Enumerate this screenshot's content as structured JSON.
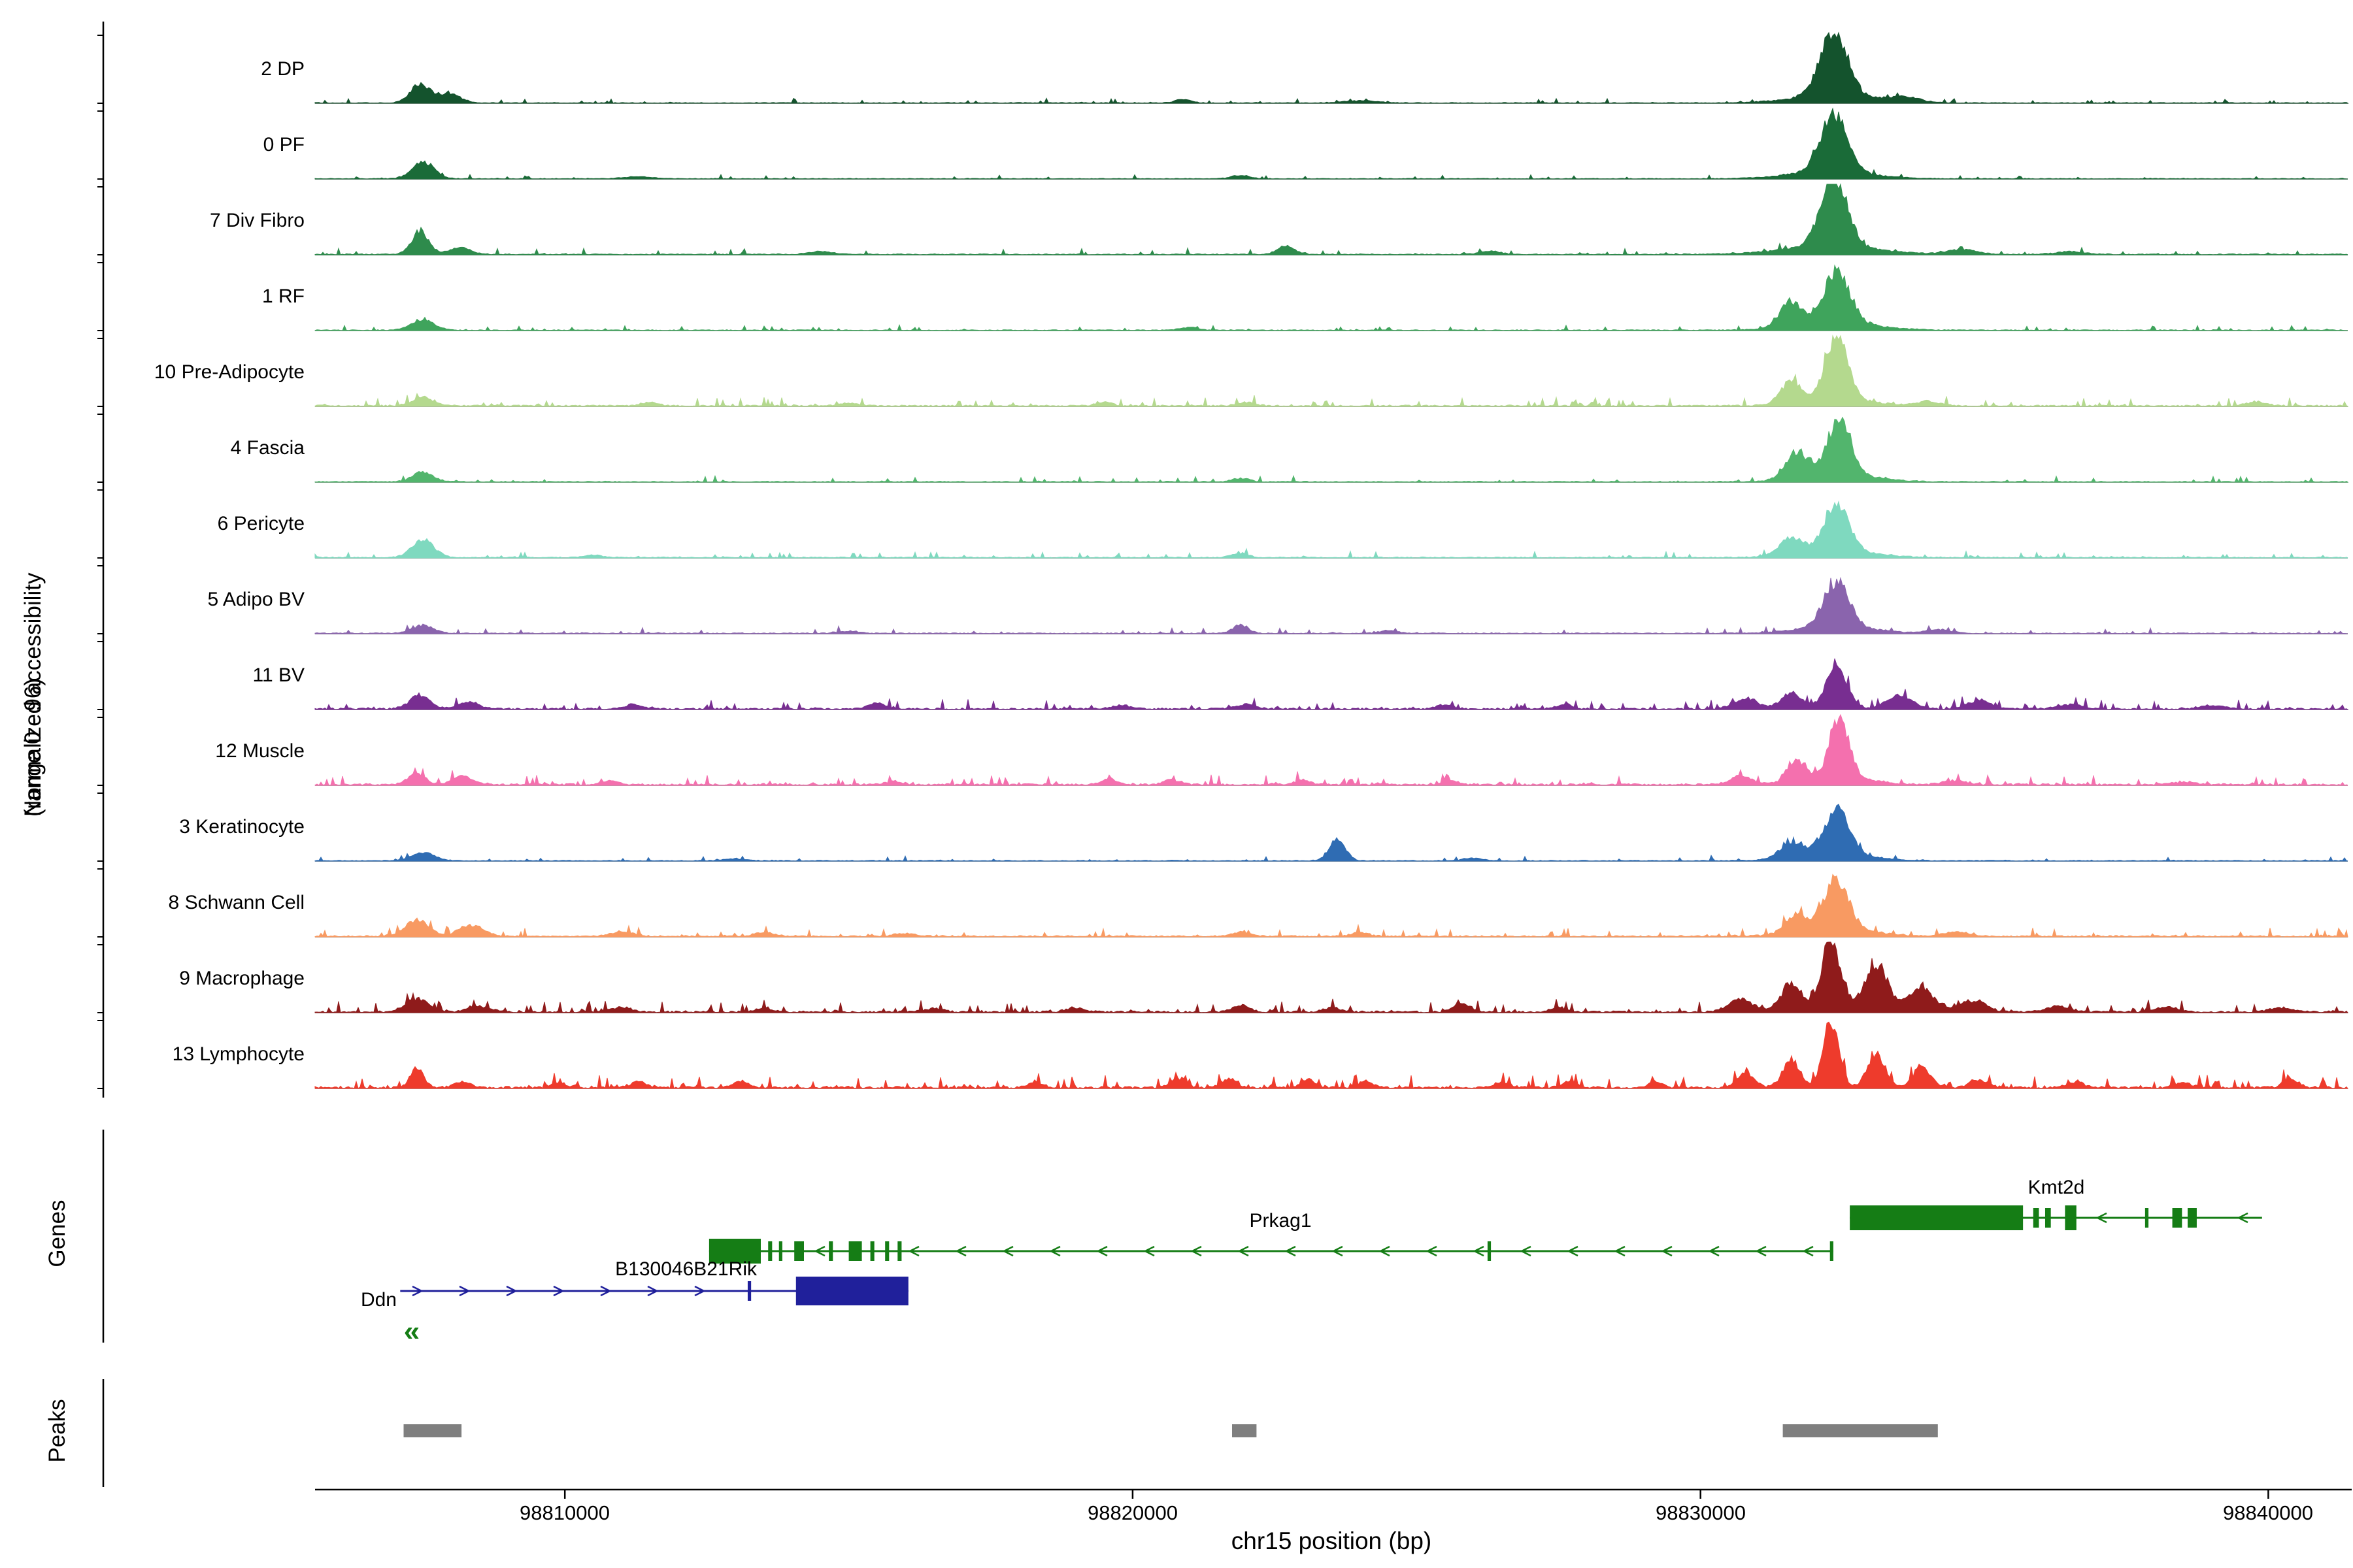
{
  "chart_data": {
    "type": "area",
    "title": "",
    "xlabel": "chr15 position (bp)",
    "ylabel": "Normalized accessibility",
    "ylabel_line2": "(range 0 - 96)",
    "section_labels": {
      "genes": "Genes",
      "peaks": "Peaks"
    },
    "x_range": [
      98805600,
      98841400
    ],
    "x_ticks": [
      98810000,
      98820000,
      98830000,
      98840000
    ],
    "per_track_y_range": [
      0,
      96
    ],
    "tracks": [
      {
        "label": "2 DP",
        "color": "#14532d",
        "seed": 101,
        "noise": 0.022,
        "spike": 0.1,
        "peaks": [
          [
            98807450,
            0.26,
            170
          ],
          [
            98807950,
            0.13,
            200
          ],
          [
            98820900,
            0.05,
            140
          ],
          [
            98824000,
            0.03,
            300
          ],
          [
            98832350,
            0.93,
            230
          ],
          [
            98832350,
            0.11,
            700
          ],
          [
            98833600,
            0.07,
            250
          ]
        ]
      },
      {
        "label": "0 PF",
        "color": "#1a6b38",
        "seed": 102,
        "noise": 0.02,
        "spike": 0.08,
        "peaks": [
          [
            98807500,
            0.24,
            190
          ],
          [
            98811300,
            0.03,
            250
          ],
          [
            98821900,
            0.045,
            160
          ],
          [
            98832350,
            0.8,
            230
          ],
          [
            98832300,
            0.1,
            700
          ]
        ]
      },
      {
        "label": "7 Div Fibro",
        "color": "#2e8b4c",
        "seed": 103,
        "noise": 0.03,
        "spike": 0.12,
        "peaks": [
          [
            98807450,
            0.32,
            150
          ],
          [
            98808150,
            0.1,
            180
          ],
          [
            98814500,
            0.04,
            200
          ],
          [
            98822700,
            0.12,
            150
          ],
          [
            98826300,
            0.05,
            160
          ],
          [
            98832350,
            1.0,
            225
          ],
          [
            98832300,
            0.12,
            800
          ],
          [
            98834600,
            0.07,
            250
          ],
          [
            98836500,
            0.04,
            250
          ]
        ]
      },
      {
        "label": "1 RF",
        "color": "#3fa45c",
        "seed": 104,
        "noise": 0.025,
        "spike": 0.1,
        "peaks": [
          [
            98807500,
            0.15,
            200
          ],
          [
            98821000,
            0.04,
            160
          ],
          [
            98831600,
            0.35,
            200
          ],
          [
            98832400,
            0.72,
            230
          ],
          [
            98832400,
            0.1,
            700
          ]
        ]
      },
      {
        "label": "10 Pre-Adipocyte",
        "color": "#b4d98e",
        "seed": 105,
        "noise": 0.04,
        "spike": 0.16,
        "peaks": [
          [
            98807500,
            0.12,
            180
          ],
          [
            98811500,
            0.05,
            150
          ],
          [
            98815000,
            0.04,
            150
          ],
          [
            98819500,
            0.05,
            140
          ],
          [
            98822000,
            0.05,
            150
          ],
          [
            98831600,
            0.3,
            180
          ],
          [
            98832400,
            0.88,
            190
          ],
          [
            98832400,
            0.1,
            600
          ],
          [
            98834000,
            0.06,
            200
          ],
          [
            98839800,
            0.06,
            160
          ]
        ]
      },
      {
        "label": "4 Fascia",
        "color": "#52b56d",
        "seed": 106,
        "noise": 0.028,
        "spike": 0.1,
        "peaks": [
          [
            98807500,
            0.13,
            180
          ],
          [
            98821900,
            0.05,
            140
          ],
          [
            98831700,
            0.38,
            190
          ],
          [
            98832450,
            0.82,
            200
          ],
          [
            98832400,
            0.1,
            650
          ]
        ]
      },
      {
        "label": "6 Pericyte",
        "color": "#7fd9bf",
        "seed": 107,
        "noise": 0.03,
        "spike": 0.11,
        "peaks": [
          [
            98807500,
            0.25,
            190
          ],
          [
            98810500,
            0.04,
            160
          ],
          [
            98821900,
            0.06,
            140
          ],
          [
            98831600,
            0.25,
            200
          ],
          [
            98832400,
            0.7,
            210
          ],
          [
            98832400,
            0.09,
            650
          ]
        ]
      },
      {
        "label": "5 Adipo BV",
        "color": "#8a64ad",
        "seed": 108,
        "noise": 0.028,
        "spike": 0.1,
        "peaks": [
          [
            98807500,
            0.11,
            190
          ],
          [
            98815000,
            0.03,
            180
          ],
          [
            98821900,
            0.12,
            130
          ],
          [
            98824500,
            0.04,
            150
          ],
          [
            98832400,
            0.66,
            220
          ],
          [
            98832400,
            0.09,
            650
          ],
          [
            98834200,
            0.05,
            200
          ]
        ]
      },
      {
        "label": "11 BV",
        "color": "#782e91",
        "seed": 109,
        "noise": 0.045,
        "spike": 0.17,
        "peaks": [
          [
            98807450,
            0.2,
            170
          ],
          [
            98808300,
            0.1,
            180
          ],
          [
            98811200,
            0.06,
            150
          ],
          [
            98815500,
            0.09,
            130
          ],
          [
            98819800,
            0.05,
            140
          ],
          [
            98822000,
            0.07,
            150
          ],
          [
            98825500,
            0.06,
            140
          ],
          [
            98827600,
            0.07,
            130
          ],
          [
            98830800,
            0.15,
            200
          ],
          [
            98831600,
            0.22,
            180
          ],
          [
            98832400,
            0.58,
            190
          ],
          [
            98833500,
            0.18,
            220
          ],
          [
            98834900,
            0.12,
            200
          ],
          [
            98836500,
            0.06,
            200
          ],
          [
            98839000,
            0.05,
            200
          ]
        ]
      },
      {
        "label": "12 Muscle",
        "color": "#f470ae",
        "seed": 110,
        "noise": 0.05,
        "spike": 0.18,
        "peaks": [
          [
            98807400,
            0.16,
            150
          ],
          [
            98808200,
            0.12,
            160
          ],
          [
            98810800,
            0.06,
            140
          ],
          [
            98815800,
            0.05,
            140
          ],
          [
            98819600,
            0.08,
            130
          ],
          [
            98820700,
            0.07,
            130
          ],
          [
            98823000,
            0.06,
            140
          ],
          [
            98825600,
            0.06,
            130
          ],
          [
            98830700,
            0.12,
            180
          ],
          [
            98831700,
            0.3,
            160
          ],
          [
            98832450,
            0.85,
            170
          ],
          [
            98832400,
            0.1,
            600
          ],
          [
            98834500,
            0.06,
            200
          ],
          [
            98838500,
            0.04,
            200
          ]
        ]
      },
      {
        "label": "3 Keratinocyte",
        "color": "#2f6cb3",
        "seed": 111,
        "noise": 0.025,
        "spike": 0.1,
        "peaks": [
          [
            98807500,
            0.12,
            200
          ],
          [
            98813000,
            0.03,
            180
          ],
          [
            98823600,
            0.3,
            140
          ],
          [
            98826000,
            0.04,
            160
          ],
          [
            98831600,
            0.22,
            200
          ],
          [
            98832400,
            0.62,
            230
          ],
          [
            98832400,
            0.08,
            650
          ]
        ]
      },
      {
        "label": "8 Schwann Cell",
        "color": "#f89a62",
        "seed": 112,
        "noise": 0.04,
        "spike": 0.15,
        "peaks": [
          [
            98807400,
            0.24,
            200
          ],
          [
            98808350,
            0.15,
            220
          ],
          [
            98811000,
            0.07,
            180
          ],
          [
            98813500,
            0.05,
            180
          ],
          [
            98816000,
            0.04,
            180
          ],
          [
            98821900,
            0.06,
            150
          ],
          [
            98824000,
            0.05,
            150
          ],
          [
            98831700,
            0.25,
            200
          ],
          [
            98832400,
            0.7,
            210
          ],
          [
            98832400,
            0.1,
            650
          ],
          [
            98834500,
            0.06,
            220
          ]
        ]
      },
      {
        "label": "9 Macrophage",
        "color": "#8f1b1b",
        "seed": 113,
        "noise": 0.05,
        "spike": 0.2,
        "peaks": [
          [
            98807400,
            0.18,
            200
          ],
          [
            98808500,
            0.08,
            200
          ],
          [
            98811000,
            0.06,
            170
          ],
          [
            98813500,
            0.05,
            160
          ],
          [
            98816500,
            0.05,
            160
          ],
          [
            98819000,
            0.05,
            160
          ],
          [
            98821900,
            0.1,
            150
          ],
          [
            98823500,
            0.06,
            150
          ],
          [
            98825800,
            0.12,
            140
          ],
          [
            98827500,
            0.06,
            150
          ],
          [
            98830700,
            0.18,
            200
          ],
          [
            98831600,
            0.35,
            170
          ],
          [
            98832300,
            0.93,
            160
          ],
          [
            98833100,
            0.6,
            180
          ],
          [
            98833900,
            0.3,
            200
          ],
          [
            98834800,
            0.15,
            220
          ],
          [
            98832800,
            0.1,
            900
          ],
          [
            98836300,
            0.08,
            200
          ],
          [
            98838200,
            0.07,
            200
          ],
          [
            98840200,
            0.06,
            200
          ]
        ]
      },
      {
        "label": "13 Lymphocyte",
        "color": "#ee3b2c",
        "seed": 114,
        "noise": 0.06,
        "spike": 0.22,
        "peaks": [
          [
            98807400,
            0.3,
            110
          ],
          [
            98808200,
            0.08,
            140
          ],
          [
            98809900,
            0.08,
            120
          ],
          [
            98811300,
            0.1,
            120
          ],
          [
            98813100,
            0.09,
            120
          ],
          [
            98818300,
            0.08,
            120
          ],
          [
            98820800,
            0.13,
            130
          ],
          [
            98821700,
            0.12,
            130
          ],
          [
            98823100,
            0.11,
            120
          ],
          [
            98824100,
            0.09,
            120
          ],
          [
            98826500,
            0.08,
            130
          ],
          [
            98827700,
            0.1,
            120
          ],
          [
            98829200,
            0.08,
            120
          ],
          [
            98830800,
            0.2,
            150
          ],
          [
            98831600,
            0.4,
            150
          ],
          [
            98832300,
            0.9,
            140
          ],
          [
            98833100,
            0.45,
            160
          ],
          [
            98833900,
            0.28,
            160
          ],
          [
            98834900,
            0.12,
            160
          ],
          [
            98836600,
            0.08,
            150
          ],
          [
            98838500,
            0.07,
            150
          ],
          [
            98840400,
            0.12,
            130
          ]
        ]
      }
    ],
    "genes": [
      {
        "name": "Kmt2d",
        "color": "#157d15",
        "strand": "-",
        "row": 0,
        "start": 98832630,
        "end": 98839890,
        "label_bp": 98836270,
        "label_align": "center",
        "exons": [
          [
            98832630,
            98835680,
            "thick"
          ],
          [
            98835860,
            98835960
          ],
          [
            98836070,
            98836170
          ],
          [
            98836420,
            98836620,
            "thick"
          ],
          [
            98837830,
            98837890
          ],
          [
            98838310,
            98838480
          ],
          [
            98838580,
            98838740
          ]
        ]
      },
      {
        "name": "Prkag1",
        "color": "#157d15",
        "strand": "-",
        "row": 1,
        "start": 98812540,
        "end": 98832340,
        "label_bp": 98822600,
        "label_align": "center",
        "exons": [
          [
            98812540,
            98813450,
            "thick"
          ],
          [
            98813580,
            98813650
          ],
          [
            98813770,
            98813830
          ],
          [
            98814040,
            98814210
          ],
          [
            98814650,
            98814720
          ],
          [
            98815000,
            98815230
          ],
          [
            98815380,
            98815450
          ],
          [
            98815640,
            98815710
          ],
          [
            98815860,
            98815930
          ],
          [
            98826250,
            98826310
          ],
          [
            98832280,
            98832340
          ]
        ]
      },
      {
        "name": "B130046B21Rik",
        "color": "#157d15",
        "label_only": true,
        "row": 1,
        "label_bp": 98813380,
        "label_align": "right"
      },
      {
        "name": "Ddn",
        "color": "#20209b",
        "strand": "+",
        "row": 2,
        "start": 98807100,
        "end": 98816050,
        "label_bp": 98807040,
        "label_align": "right",
        "exons": [
          [
            98813220,
            98813280
          ],
          [
            98814070,
            98816050,
            "thick"
          ]
        ]
      }
    ],
    "offscreen_marker": {
      "symbol": "«",
      "bp": 98807300,
      "color": "#157d15"
    },
    "peak_regions": [
      [
        98807160,
        98808180
      ],
      [
        98821750,
        98822180
      ],
      [
        98831450,
        98834180
      ]
    ],
    "peaks_color": "#7f7f7f",
    "chrom": "chr15"
  }
}
